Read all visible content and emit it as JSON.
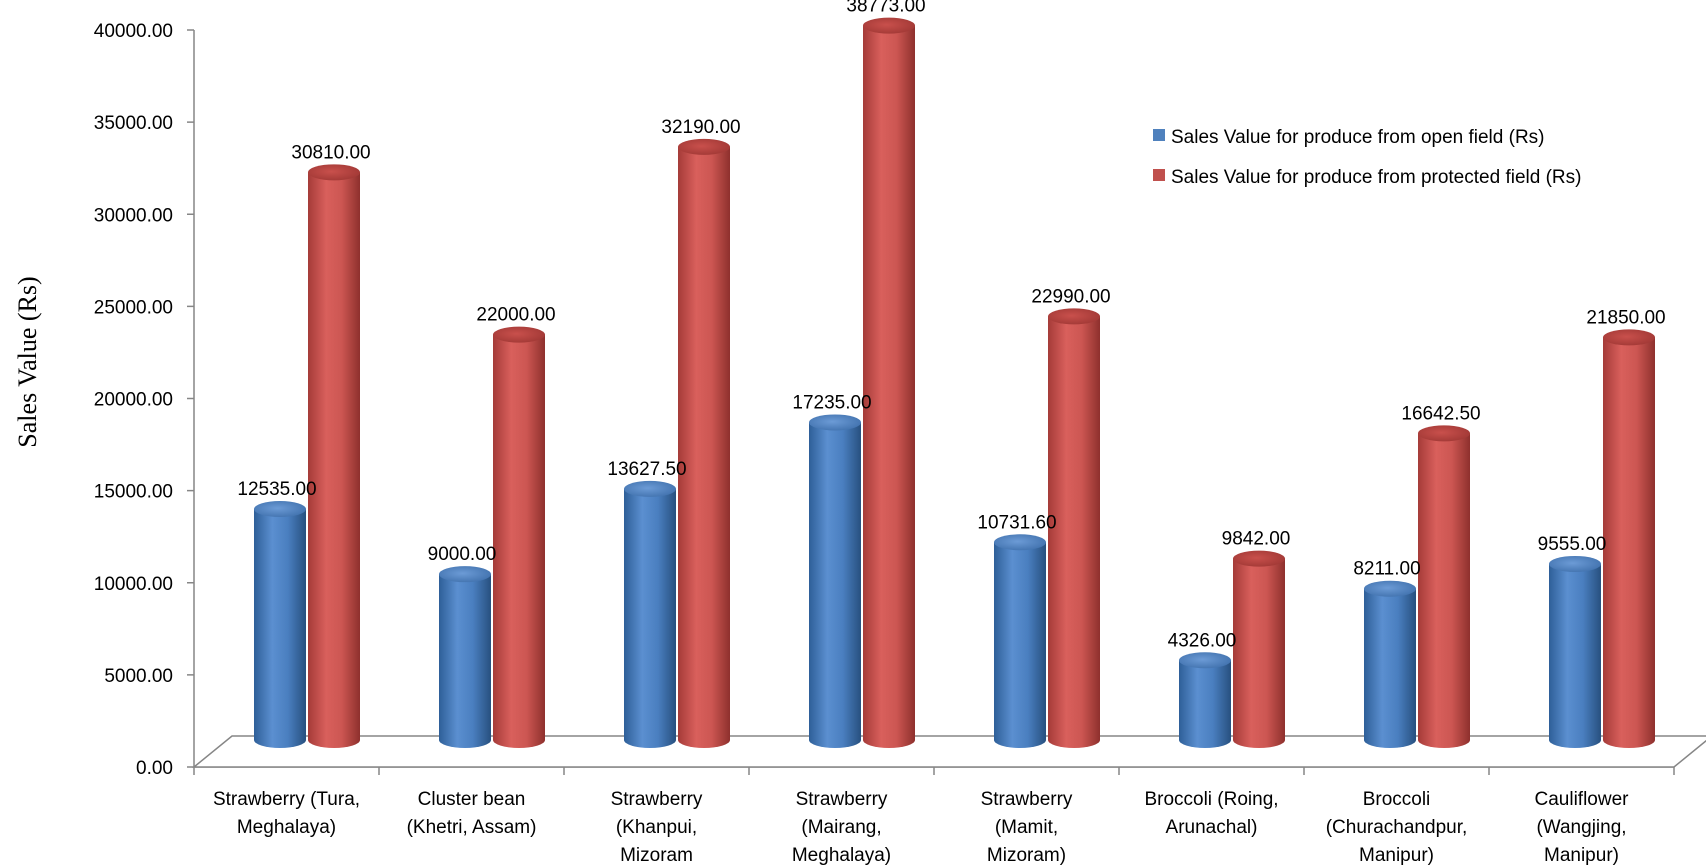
{
  "chart_data": {
    "type": "bar",
    "title": "",
    "xlabel": "",
    "ylabel": "Sales Value (Rs)",
    "ylim": [
      0,
      40000
    ],
    "yticks": [
      "0.00",
      "5000.00",
      "10000.00",
      "15000.00",
      "20000.00",
      "25000.00",
      "30000.00",
      "35000.00",
      "40000.00"
    ],
    "grid": false,
    "legend_position": "top-right",
    "categories": [
      [
        "Strawberry (Tura,",
        "Meghalaya)"
      ],
      [
        "Cluster bean",
        "(Khetri, Assam)"
      ],
      [
        "Strawberry",
        "(Khanpui,",
        "Mizoram"
      ],
      [
        "Strawberry",
        "(Mairang,",
        "Meghalaya)"
      ],
      [
        "Strawberry",
        "(Mamit,",
        "Mizoram)"
      ],
      [
        "Broccoli (Roing,",
        "Arunachal)"
      ],
      [
        "Broccoli",
        "(Churachandpur,",
        "Manipur)"
      ],
      [
        "Cauliflower",
        "(Wangjing,",
        "Manipur)"
      ]
    ],
    "series": [
      {
        "name": "Sales Value  for produce from open field  (Rs)",
        "color": "#4F81BD",
        "values": [
          12535.0,
          9000.0,
          13627.5,
          17235.0,
          10731.6,
          4326.0,
          8211.0,
          9555.0
        ],
        "labels": [
          "12535.00",
          "9000.00",
          "13627.50",
          "17235.00",
          "10731.60",
          "4326.00",
          "8211.00",
          "9555.00"
        ]
      },
      {
        "name": "Sales Value for produce from protected  field (Rs)",
        "color": "#C0504D",
        "values": [
          30810.0,
          22000.0,
          32190.0,
          38773.0,
          22990.0,
          9842.0,
          16642.5,
          21850.0
        ],
        "labels": [
          "30810.00",
          "22000.00",
          "32190.00",
          "38773.00",
          "22990.00",
          "9842.00",
          "16642.50",
          "21850.00"
        ]
      }
    ]
  }
}
